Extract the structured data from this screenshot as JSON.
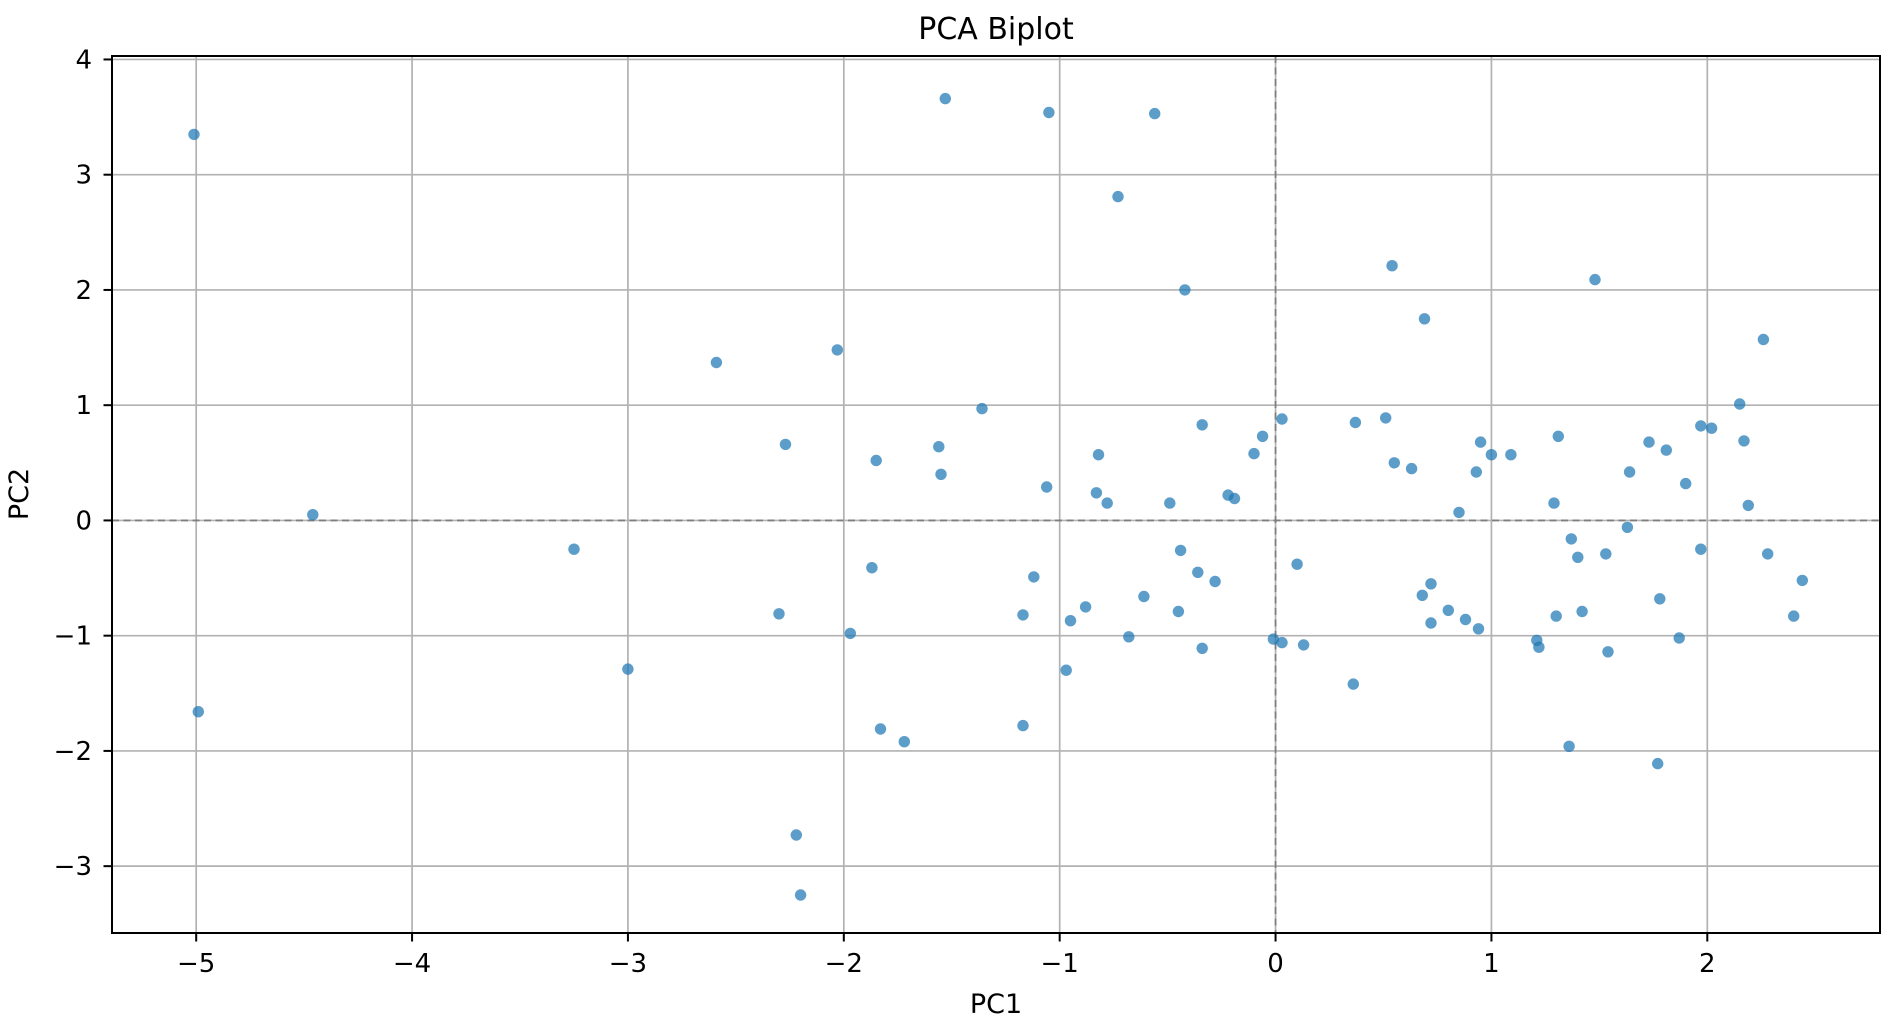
{
  "chart_data": {
    "type": "scatter",
    "title": "PCA Biplot",
    "xlabel": "PC1",
    "ylabel": "PC2",
    "xlim": [
      -5.39,
      2.8
    ],
    "ylim": [
      -3.58,
      4.03
    ],
    "xticks": [
      -5,
      -4,
      -3,
      -2,
      -1,
      0,
      1,
      2
    ],
    "yticks": [
      -3,
      -2,
      -1,
      0,
      1,
      2,
      3,
      4
    ],
    "grid": true,
    "legend": "none",
    "zero_lines": {
      "x": 0,
      "y": 0,
      "style": "dashed"
    },
    "marker": {
      "shape": "circle",
      "color": "#1f77b4",
      "opacity": 0.72,
      "radius_px": 5.7
    },
    "colors": {
      "marker": "#1f77b4",
      "grid": "#b2b2b2",
      "zero_line": "#7f7f7f",
      "frame": "#000000",
      "text": "#000000",
      "background": "#ffffff"
    },
    "points": [
      [
        -5.01,
        3.35
      ],
      [
        -4.99,
        -1.66
      ],
      [
        -4.46,
        0.05
      ],
      [
        -3.25,
        -0.25
      ],
      [
        -3.0,
        -1.29
      ],
      [
        -2.59,
        1.37
      ],
      [
        -2.3,
        -0.81
      ],
      [
        -2.27,
        0.66
      ],
      [
        -2.22,
        -2.73
      ],
      [
        -2.2,
        -3.25
      ],
      [
        -2.03,
        1.48
      ],
      [
        -1.97,
        -0.98
      ],
      [
        -1.87,
        -0.41
      ],
      [
        -1.85,
        0.52
      ],
      [
        -1.83,
        -1.81
      ],
      [
        -1.72,
        -1.92
      ],
      [
        -1.56,
        0.64
      ],
      [
        -1.55,
        0.4
      ],
      [
        -1.53,
        3.66
      ],
      [
        -1.36,
        0.97
      ],
      [
        -1.17,
        -0.82
      ],
      [
        -1.17,
        -1.78
      ],
      [
        -1.12,
        -0.49
      ],
      [
        -1.06,
        0.29
      ],
      [
        -1.05,
        3.54
      ],
      [
        -0.97,
        -1.3
      ],
      [
        -0.95,
        -0.87
      ],
      [
        -0.88,
        -0.75
      ],
      [
        -0.83,
        0.24
      ],
      [
        -0.82,
        0.57
      ],
      [
        -0.78,
        0.15
      ],
      [
        -0.73,
        2.81
      ],
      [
        -0.68,
        -1.01
      ],
      [
        -0.61,
        -0.66
      ],
      [
        -0.56,
        3.53
      ],
      [
        -0.49,
        0.15
      ],
      [
        -0.45,
        -0.79
      ],
      [
        -0.44,
        -0.26
      ],
      [
        -0.42,
        2.0
      ],
      [
        -0.36,
        -0.45
      ],
      [
        -0.34,
        0.83
      ],
      [
        -0.34,
        -1.11
      ],
      [
        -0.28,
        -0.53
      ],
      [
        -0.22,
        0.22
      ],
      [
        -0.19,
        0.19
      ],
      [
        -0.1,
        0.58
      ],
      [
        -0.06,
        0.73
      ],
      [
        -0.01,
        -1.03
      ],
      [
        0.03,
        -1.06
      ],
      [
        0.03,
        0.88
      ],
      [
        0.1,
        -0.38
      ],
      [
        0.13,
        -1.08
      ],
      [
        0.36,
        -1.42
      ],
      [
        0.37,
        0.85
      ],
      [
        0.51,
        0.89
      ],
      [
        0.54,
        2.21
      ],
      [
        0.55,
        0.5
      ],
      [
        0.63,
        0.45
      ],
      [
        0.68,
        -0.65
      ],
      [
        0.69,
        1.75
      ],
      [
        0.72,
        -0.55
      ],
      [
        0.72,
        -0.89
      ],
      [
        0.8,
        -0.78
      ],
      [
        0.85,
        0.07
      ],
      [
        0.88,
        -0.86
      ],
      [
        0.93,
        0.42
      ],
      [
        0.94,
        -0.94
      ],
      [
        0.95,
        0.68
      ],
      [
        1.0,
        0.57
      ],
      [
        1.09,
        0.57
      ],
      [
        1.21,
        -1.04
      ],
      [
        1.22,
        -1.1
      ],
      [
        1.29,
        0.15
      ],
      [
        1.3,
        -0.83
      ],
      [
        1.31,
        0.73
      ],
      [
        1.36,
        -1.96
      ],
      [
        1.37,
        -0.16
      ],
      [
        1.4,
        -0.32
      ],
      [
        1.42,
        -0.79
      ],
      [
        1.48,
        2.09
      ],
      [
        1.53,
        -0.29
      ],
      [
        1.54,
        -1.14
      ],
      [
        1.63,
        -0.06
      ],
      [
        1.64,
        0.42
      ],
      [
        1.73,
        0.68
      ],
      [
        1.77,
        -2.11
      ],
      [
        1.78,
        -0.68
      ],
      [
        1.81,
        0.61
      ],
      [
        1.87,
        -1.02
      ],
      [
        1.9,
        0.32
      ],
      [
        1.97,
        0.82
      ],
      [
        1.97,
        -0.25
      ],
      [
        2.02,
        0.8
      ],
      [
        2.15,
        1.01
      ],
      [
        2.17,
        0.69
      ],
      [
        2.19,
        0.13
      ],
      [
        2.26,
        1.57
      ],
      [
        2.28,
        -0.29
      ],
      [
        2.4,
        -0.83
      ],
      [
        2.44,
        -0.52
      ]
    ]
  }
}
